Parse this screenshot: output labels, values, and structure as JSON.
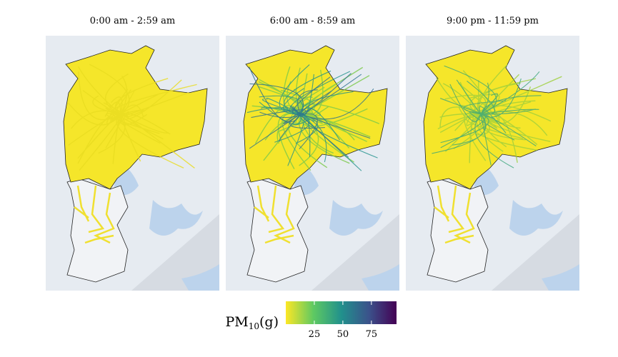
{
  "panels": [
    {
      "title": "0:00 am - 2:59 am"
    },
    {
      "title": "6:00 am - 8:59 am"
    },
    {
      "title": "9:00 pm - 11:59 pm"
    }
  ],
  "colorbar": {
    "label": {
      "base": "PM",
      "subscript": "10",
      "unit": "(g)"
    },
    "lim": [
      0,
      97
    ],
    "ticks": [
      25,
      50,
      75
    ],
    "colors": [
      "#fde725",
      "#5ec962",
      "#21918c",
      "#3b528b",
      "#440154"
    ]
  }
}
